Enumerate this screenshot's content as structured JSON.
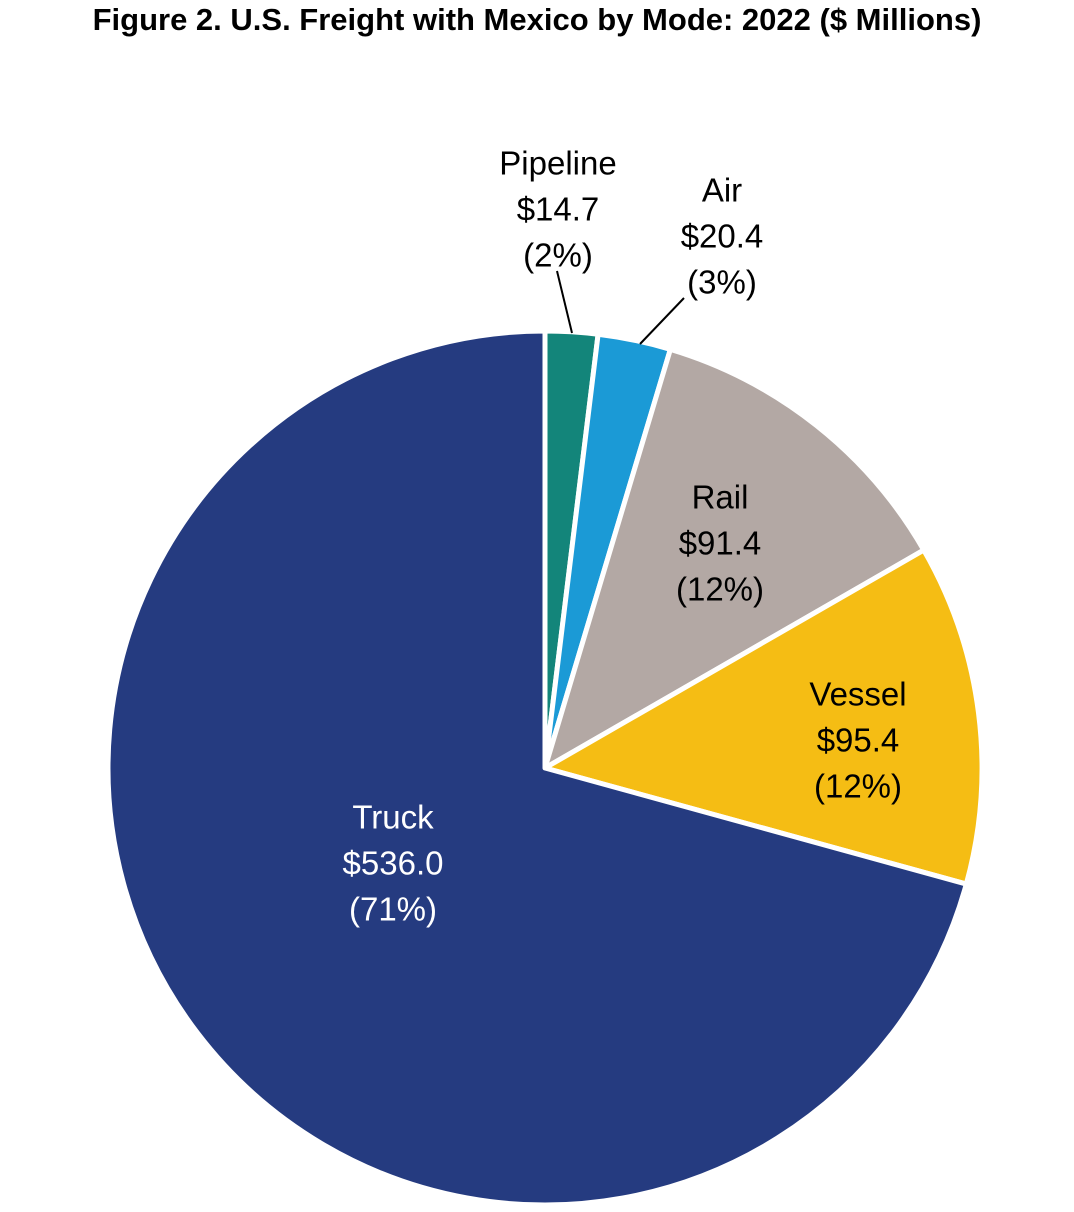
{
  "chart_data": {
    "type": "pie",
    "title": "Figure 2. U.S. Freight with Mexico by Mode: 2022 ($ Millions)",
    "start_angle_deg": 0,
    "direction": "clockwise",
    "slices": [
      {
        "name": "Pipeline",
        "value": 14.7,
        "value_label": "$14.7",
        "percent_label": "(2%)",
        "color": "#13857a",
        "label_color": "#000000"
      },
      {
        "name": "Air",
        "value": 20.4,
        "value_label": "$20.4",
        "percent_label": "(3%)",
        "color": "#1b9ad6",
        "label_color": "#000000"
      },
      {
        "name": "Rail",
        "value": 91.4,
        "value_label": "$91.4",
        "percent_label": "(12%)",
        "color": "#b3a8a4",
        "label_color": "#000000"
      },
      {
        "name": "Vessel",
        "value": 95.4,
        "value_label": "$95.4",
        "percent_label": "(12%)",
        "color": "#f5bd14",
        "label_color": "#000000"
      },
      {
        "name": "Truck",
        "value": 536.0,
        "value_label": "$536.0",
        "percent_label": "(71%)",
        "color": "#253b80",
        "label_color": "#ffffff"
      }
    ],
    "unit": "$ Millions",
    "legend": "none"
  }
}
